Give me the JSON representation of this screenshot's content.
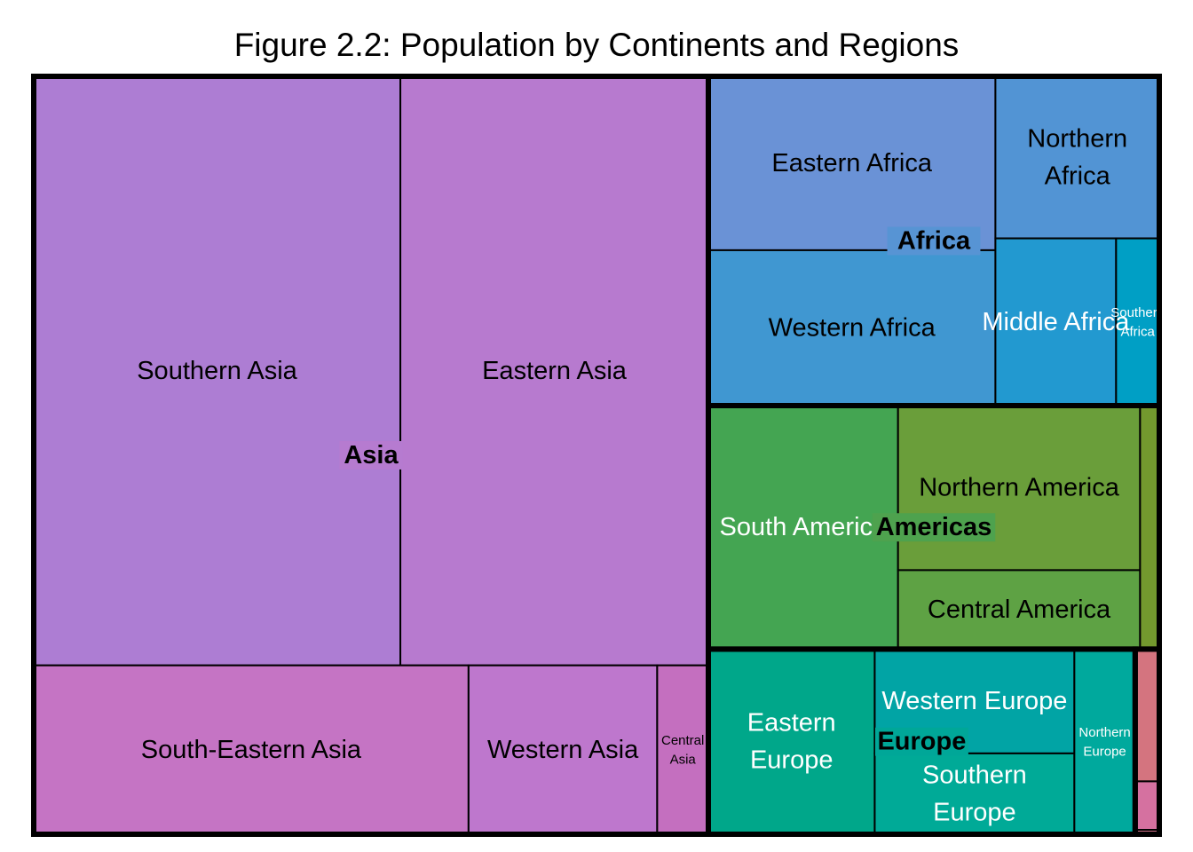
{
  "chart_data": {
    "type": "treemap",
    "title": "Figure 2.2: Population by Continents and Regions",
    "unit": "",
    "groups": [
      {
        "name": "Asia",
        "color": "#b67bd0",
        "children": [
          {
            "name": "Southern Asia",
            "value": 2000,
            "color": "#ad7dd3",
            "text_color": "#000000"
          },
          {
            "name": "Eastern Asia",
            "value": 1680,
            "color": "#b77acf",
            "text_color": "#000000"
          },
          {
            "name": "South-Eastern Asia",
            "value": 680,
            "color": "#c574c4",
            "text_color": "#000000"
          },
          {
            "name": "Western Asia",
            "value": 295,
            "color": "#be77cd",
            "text_color": "#000000"
          },
          {
            "name": "Central Asia",
            "value": 80,
            "color": "#c46fbf",
            "text_color": "#000000"
          }
        ]
      },
      {
        "name": "Africa",
        "color": "#5794d4",
        "children": [
          {
            "name": "Eastern Africa",
            "value": 470,
            "color": "#6a92d6",
            "text_color": "#000000"
          },
          {
            "name": "Western Africa",
            "value": 420,
            "color": "#4097d1",
            "text_color": "#000000"
          },
          {
            "name": "Northern Africa",
            "value": 250,
            "color": "#5294d4",
            "text_color": "#000000"
          },
          {
            "name": "Middle Africa",
            "value": 190,
            "color": "#2299d0",
            "text_color": "#ffffff"
          },
          {
            "name": "Southern Africa",
            "value": 68,
            "color": "#009fc5",
            "text_color": "#ffffff"
          }
        ]
      },
      {
        "name": "Americas",
        "color": "#4ea24e",
        "children": [
          {
            "name": "South America",
            "value": 435,
            "color": "#44a552",
            "text_color": "#ffffff"
          },
          {
            "name": "Northern America",
            "value": 375,
            "color": "#6a9e3a",
            "text_color": "#000000"
          },
          {
            "name": "Central America",
            "value": 180,
            "color": "#5ea244",
            "text_color": "#000000"
          },
          {
            "name": "",
            "value": 44,
            "color": "#73992e",
            "text_color": "#000000"
          }
        ]
      },
      {
        "name": "Europe",
        "color": "#00a798",
        "children": [
          {
            "name": "Eastern Europe",
            "value": 290,
            "color": "#00a78a",
            "text_color": "#ffffff"
          },
          {
            "name": "Western Europe",
            "value": 196,
            "color": "#01a4a5",
            "text_color": "#ffffff"
          },
          {
            "name": "Southern Europe",
            "value": 152,
            "color": "#00aa97",
            "text_color": "#ffffff"
          },
          {
            "name": "Northern Europe",
            "value": 106,
            "color": "#00a99d",
            "text_color": "#ffffff"
          }
        ]
      },
      {
        "name": "",
        "color": "#d77393",
        "children": [
          {
            "name": "",
            "value": 30,
            "color": "#d4747f",
            "text_color": "#000000"
          },
          {
            "name": "",
            "value": 11,
            "color": "#d571a0",
            "text_color": "#000000"
          },
          {
            "name": "",
            "value": 1,
            "color": "#d4748a",
            "text_color": "#000000"
          }
        ]
      }
    ]
  }
}
